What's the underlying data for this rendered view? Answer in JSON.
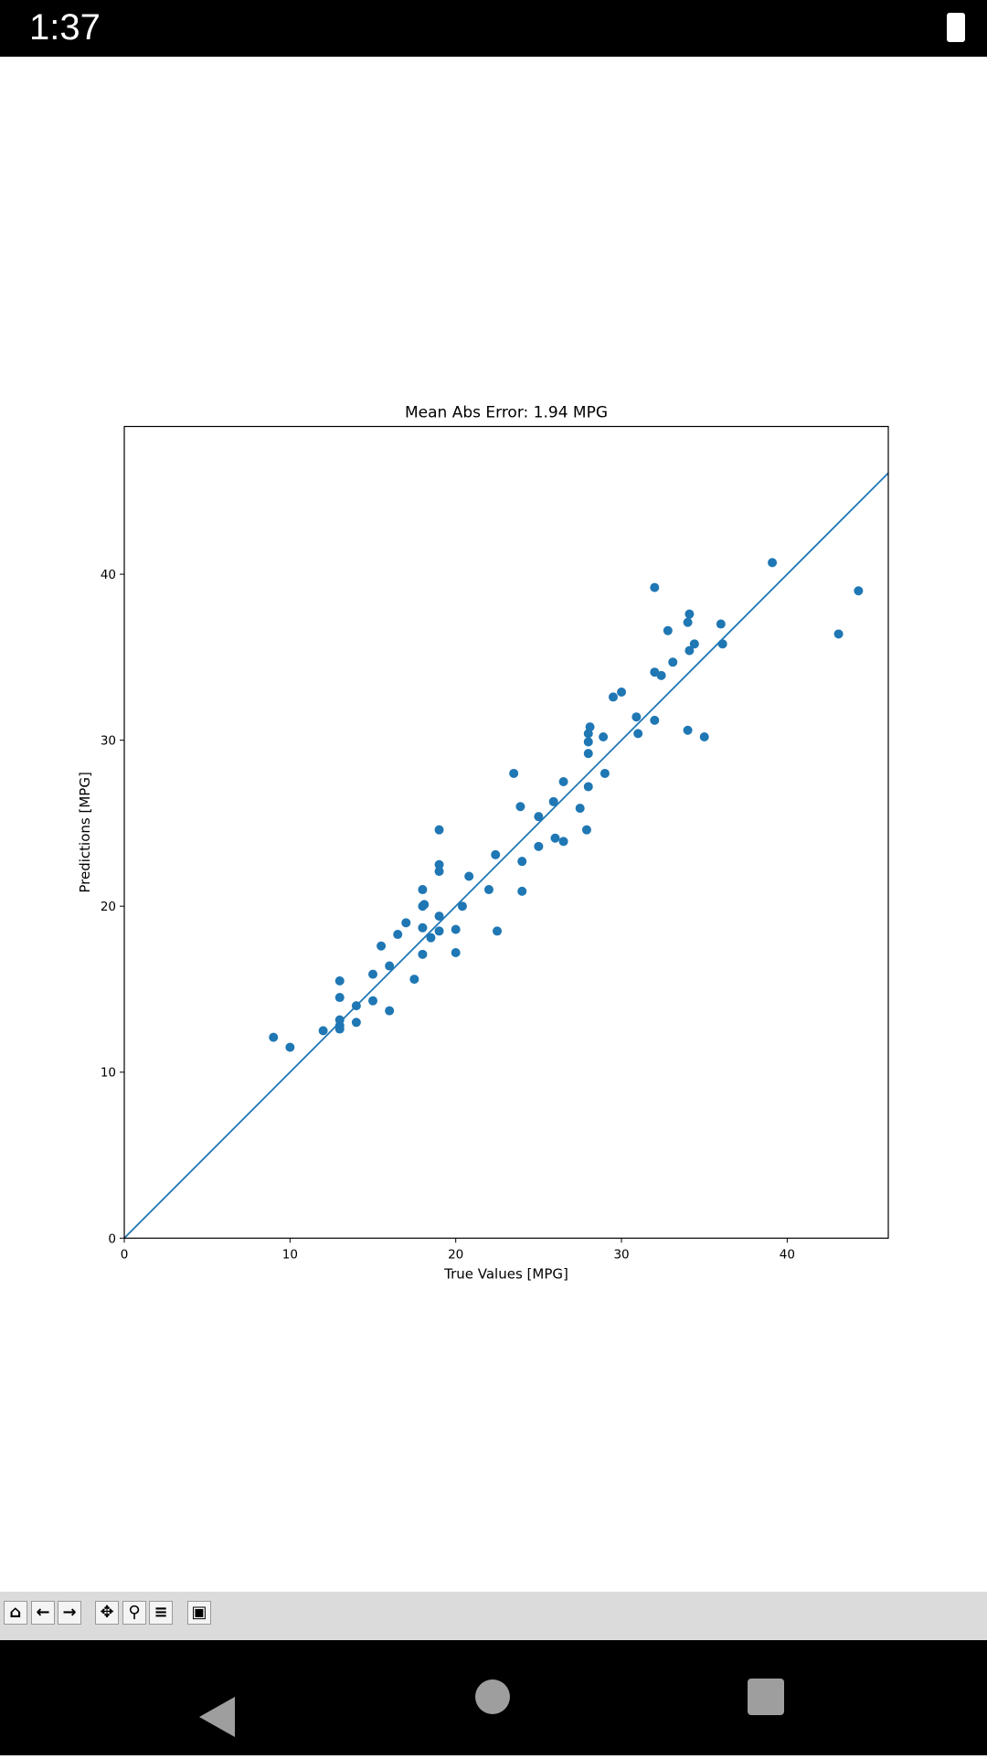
{
  "status_bar": {
    "time": "1:37"
  },
  "chart_data": {
    "type": "scatter",
    "title": "Mean Abs Error: 1.94 MPG",
    "xlabel": "True Values [MPG]",
    "ylabel": "Predictions [MPG]",
    "color": "#1f77b4",
    "x": [
      9,
      10,
      12,
      13,
      13,
      13,
      13,
      13,
      14,
      14,
      15,
      15,
      15.5,
      16,
      16,
      16.5,
      17,
      17.5,
      18,
      18,
      18.1,
      18,
      18,
      18.5,
      19,
      19,
      19,
      19,
      19,
      20,
      20,
      20.4,
      20.8,
      22,
      22.4,
      22.5,
      23.5,
      23.9,
      24,
      24,
      25,
      25,
      25.9,
      26,
      26.5,
      26.5,
      27.5,
      27.9,
      28,
      28,
      28,
      28,
      28.1,
      28.9,
      29,
      29.5,
      30,
      30.9,
      31,
      32,
      32,
      32,
      32.4,
      32.8,
      33.1,
      34,
      34.1,
      34.1,
      34.4,
      34,
      35,
      36,
      36.1,
      39.1,
      43.1,
      44.3
    ],
    "values": [
      12.1,
      11.5,
      12.5,
      15.5,
      14.5,
      13.15,
      12.8,
      12.6,
      14,
      13,
      15.9,
      14.3,
      17.6,
      16.4,
      13.7,
      18.3,
      19,
      15.6,
      21,
      20,
      20.1,
      18.7,
      17.1,
      18.1,
      24.6,
      22.5,
      22.1,
      19.4,
      18.5,
      18.6,
      17.2,
      20,
      21.8,
      21,
      23.1,
      18.5,
      28,
      26,
      22.7,
      20.9,
      25.4,
      23.6,
      26.3,
      24.1,
      27.5,
      23.9,
      25.9,
      24.6,
      27.2,
      29.2,
      29.9,
      30.4,
      30.8,
      30.2,
      28,
      32.6,
      32.9,
      31.4,
      30.4,
      39.2,
      31.2,
      34.1,
      33.9,
      36.6,
      34.7,
      37.1,
      37.6,
      35.4,
      35.8,
      30.6,
      30.2,
      37,
      35.8,
      40.7,
      36.4,
      39
    ],
    "diagonal": {
      "type": "line",
      "x": [
        0,
        46.1
      ],
      "values": [
        0,
        46.1
      ]
    },
    "xlim": [
      0,
      46.1
    ],
    "ylim": [
      0,
      48.9
    ],
    "xticks": [
      0,
      10,
      20,
      30,
      40
    ],
    "yticks": [
      0,
      10,
      20,
      30,
      40
    ]
  }
}
